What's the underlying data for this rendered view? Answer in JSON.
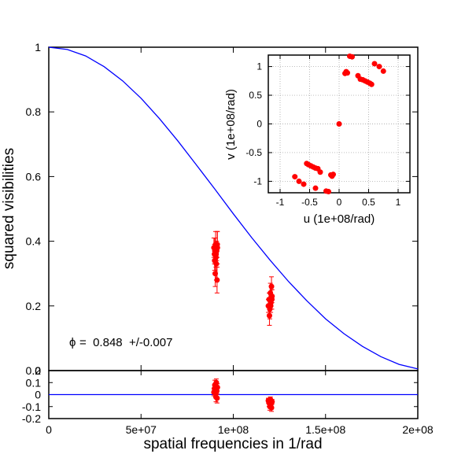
{
  "colors": {
    "model": "#0000ff",
    "points": "#ff0000",
    "errorbar": "#ff0000",
    "axes": "#000000",
    "grid": "#999999"
  },
  "chart_data": [
    {
      "type": "scatter",
      "panel": "squared visibilities vs spatial frequency",
      "xlabel": "",
      "ylabel": "squared visibilities",
      "xlim": [
        0,
        200000000
      ],
      "ylim": [
        0,
        1
      ],
      "xticks": [],
      "yticks": [
        "0",
        "0.2",
        "0.4",
        "0.6",
        "0.8",
        "1"
      ],
      "annotation": {
        "symbol": "ϕ",
        "text": "=  0.848  +/-0.007"
      },
      "series": [
        {
          "kind": "line",
          "description": "uniform disk model",
          "x": [
            0,
            10000000,
            20000000,
            30000000,
            40000000,
            50000000,
            60000000,
            70000000,
            80000000,
            90000000,
            100000000,
            110000000,
            120000000,
            130000000,
            140000000,
            150000000,
            160000000,
            170000000,
            180000000,
            190000000,
            200000000
          ],
          "y": [
            1.0,
            0.993,
            0.973,
            0.94,
            0.896,
            0.842,
            0.779,
            0.71,
            0.636,
            0.561,
            0.485,
            0.411,
            0.341,
            0.275,
            0.215,
            0.16,
            0.114,
            0.075,
            0.043,
            0.019,
            0.005
          ]
        },
        {
          "kind": "points",
          "description": "measured V2",
          "x": [
            89500000,
            89800000,
            90000000,
            90200000,
            90400000,
            90600000,
            90800000,
            91000000,
            91200000,
            91400000,
            89900000,
            90700000,
            91300000,
            119000000,
            119400000,
            119800000,
            120100000,
            120400000,
            120700000,
            121000000,
            119600000,
            120300000,
            120900000
          ],
          "y": [
            0.38,
            0.36,
            0.37,
            0.3,
            0.39,
            0.35,
            0.33,
            0.37,
            0.28,
            0.38,
            0.34,
            0.36,
            0.39,
            0.2,
            0.22,
            0.19,
            0.24,
            0.21,
            0.26,
            0.23,
            0.17,
            0.2,
            0.22
          ],
          "yerr": [
            0.03,
            0.03,
            0.04,
            0.04,
            0.04,
            0.03,
            0.05,
            0.03,
            0.04,
            0.05,
            0.03,
            0.03,
            0.04,
            0.02,
            0.02,
            0.03,
            0.03,
            0.02,
            0.03,
            0.02,
            0.03,
            0.02,
            0.03
          ]
        }
      ]
    },
    {
      "type": "scatter",
      "panel": "residuals",
      "xlabel": "spatial frequencies in 1/rad",
      "ylabel": "",
      "xlim": [
        0,
        200000000
      ],
      "ylim": [
        -0.2,
        0.2
      ],
      "xticks": [
        "0",
        "5e+07",
        "1e+08",
        "1.5e+08",
        "2e+08"
      ],
      "yticks": [
        "-0.2",
        "-0.1",
        "0",
        "0.1",
        "0.2"
      ],
      "series": [
        {
          "kind": "line",
          "description": "zero line",
          "x": [
            0,
            200000000
          ],
          "y": [
            0,
            0
          ]
        },
        {
          "kind": "points",
          "description": "residuals",
          "x": [
            89500000,
            89800000,
            90000000,
            90200000,
            90400000,
            90600000,
            90800000,
            91000000,
            91200000,
            91400000,
            119000000,
            119400000,
            119800000,
            120100000,
            120400000,
            120700000,
            121000000
          ],
          "y": [
            0.02,
            0.05,
            0.08,
            0.04,
            0.01,
            -0.02,
            0.1,
            0.03,
            -0.03,
            0.06,
            -0.05,
            -0.07,
            -0.1,
            -0.04,
            -0.08,
            -0.11,
            -0.06
          ],
          "yerr": [
            0.03,
            0.03,
            0.04,
            0.04,
            0.03,
            0.04,
            0.03,
            0.03,
            0.04,
            0.03,
            0.02,
            0.03,
            0.03,
            0.02,
            0.03,
            0.03,
            0.02
          ]
        }
      ]
    },
    {
      "type": "scatter",
      "panel": "uv coverage (inset)",
      "xlabel": "u (1e+08/rad)",
      "ylabel": "v (1e+08/rad)",
      "xlim": [
        -1.2,
        1.2
      ],
      "ylim": [
        -1.2,
        1.2
      ],
      "xticks": [
        "-1",
        "-0.5",
        "0",
        "0.5",
        "1"
      ],
      "yticks": [
        "-1",
        "-0.5",
        "0",
        "0.5",
        "1"
      ],
      "grid": true,
      "series": [
        {
          "kind": "points",
          "description": "uv points",
          "x": [
            0,
            0.18,
            0.22,
            0.12,
            0.1,
            0.14,
            0.32,
            0.36,
            0.4,
            0.44,
            0.48,
            0.52,
            0.55,
            0.6,
            0.68,
            0.75,
            -0.18,
            -0.22,
            -0.12,
            -0.1,
            -0.14,
            -0.32,
            -0.36,
            -0.4,
            -0.44,
            -0.48,
            -0.52,
            -0.55,
            -0.6,
            -0.68,
            -0.75,
            -0.4
          ],
          "y": [
            0,
            1.18,
            1.17,
            0.91,
            0.88,
            0.89,
            0.84,
            0.78,
            0.77,
            0.75,
            0.73,
            0.71,
            0.69,
            1.05,
            1.0,
            0.92,
            -1.18,
            -1.17,
            -0.91,
            -0.88,
            -0.89,
            -0.84,
            -0.78,
            -0.77,
            -0.75,
            -0.73,
            -0.71,
            -0.69,
            -1.05,
            -1.0,
            -0.92,
            -1.12
          ]
        }
      ]
    }
  ]
}
